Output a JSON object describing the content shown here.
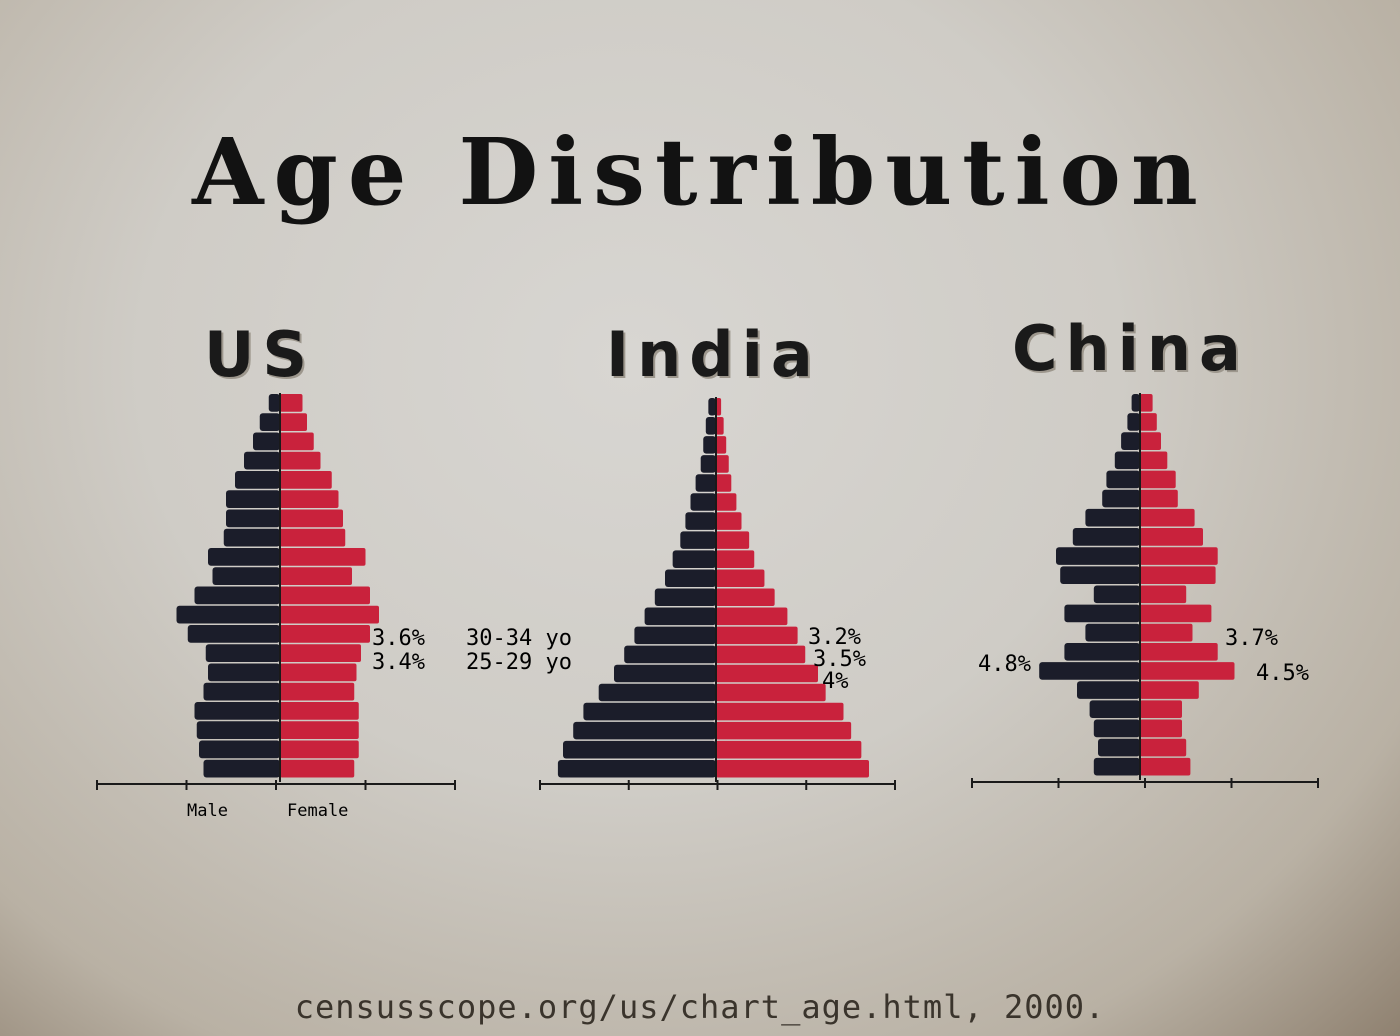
{
  "title": "Age Distribution",
  "source": "censusscope.org/us/chart_age.html, 2000.",
  "colors": {
    "male": "#1b1d2a",
    "female": "#c9223c",
    "axis": "#1a1a1a"
  },
  "chart_data": [
    {
      "type": "bar",
      "title": "US",
      "orientation": "horizontal-pyramid",
      "xlabel_left": "Male",
      "xlabel_right": "Female",
      "series": [
        {
          "name": "Male",
          "values": [
            3.4,
            3.6,
            3.7,
            3.8,
            3.4,
            3.2,
            3.3,
            4.1,
            4.6,
            3.8,
            3.0,
            3.2,
            2.5,
            2.4,
            2.4,
            2.0,
            1.6,
            1.2,
            0.9,
            0.5
          ]
        },
        {
          "name": "Female",
          "values": [
            3.3,
            3.5,
            3.5,
            3.5,
            3.3,
            3.4,
            3.6,
            4.0,
            4.4,
            4.0,
            3.2,
            3.8,
            2.9,
            2.8,
            2.6,
            2.3,
            1.8,
            1.5,
            1.2,
            1.0
          ]
        }
      ],
      "annotations": [
        {
          "label": "3.6%",
          "age": "30-34 yo"
        },
        {
          "label": "3.4%",
          "age": "25-29 yo"
        }
      ]
    },
    {
      "type": "bar",
      "title": "India",
      "orientation": "horizontal-pyramid",
      "series": [
        {
          "name": "Male",
          "values": [
            6.2,
            6.0,
            5.6,
            5.2,
            4.6,
            4.0,
            3.6,
            3.2,
            2.8,
            2.4,
            2.0,
            1.7,
            1.4,
            1.2,
            1.0,
            0.8,
            0.6,
            0.5,
            0.4,
            0.3
          ]
        },
        {
          "name": "Female",
          "values": [
            6.0,
            5.7,
            5.3,
            5.0,
            4.3,
            4.0,
            3.5,
            3.2,
            2.8,
            2.3,
            1.9,
            1.5,
            1.3,
            1.0,
            0.8,
            0.6,
            0.5,
            0.4,
            0.3,
            0.2
          ]
        }
      ],
      "annotations": [
        {
          "label": "3.2%"
        },
        {
          "label": "3.5%"
        },
        {
          "label": "4%"
        }
      ]
    },
    {
      "type": "bar",
      "title": "China",
      "orientation": "horizontal-pyramid",
      "series": [
        {
          "name": "Male",
          "values": [
            2.2,
            2.0,
            2.2,
            2.4,
            3.0,
            4.8,
            3.6,
            2.6,
            3.6,
            2.2,
            3.8,
            4.0,
            3.2,
            2.6,
            1.8,
            1.6,
            1.2,
            0.9,
            0.6,
            0.4
          ]
        },
        {
          "name": "Female",
          "values": [
            2.4,
            2.2,
            2.0,
            2.0,
            2.8,
            4.5,
            3.7,
            2.5,
            3.4,
            2.2,
            3.6,
            3.7,
            3.0,
            2.6,
            1.8,
            1.7,
            1.3,
            1.0,
            0.8,
            0.6
          ]
        }
      ],
      "annotations": [
        {
          "label": "4.8%"
        },
        {
          "label": "3.7%"
        },
        {
          "label": "4.5%"
        }
      ]
    }
  ]
}
